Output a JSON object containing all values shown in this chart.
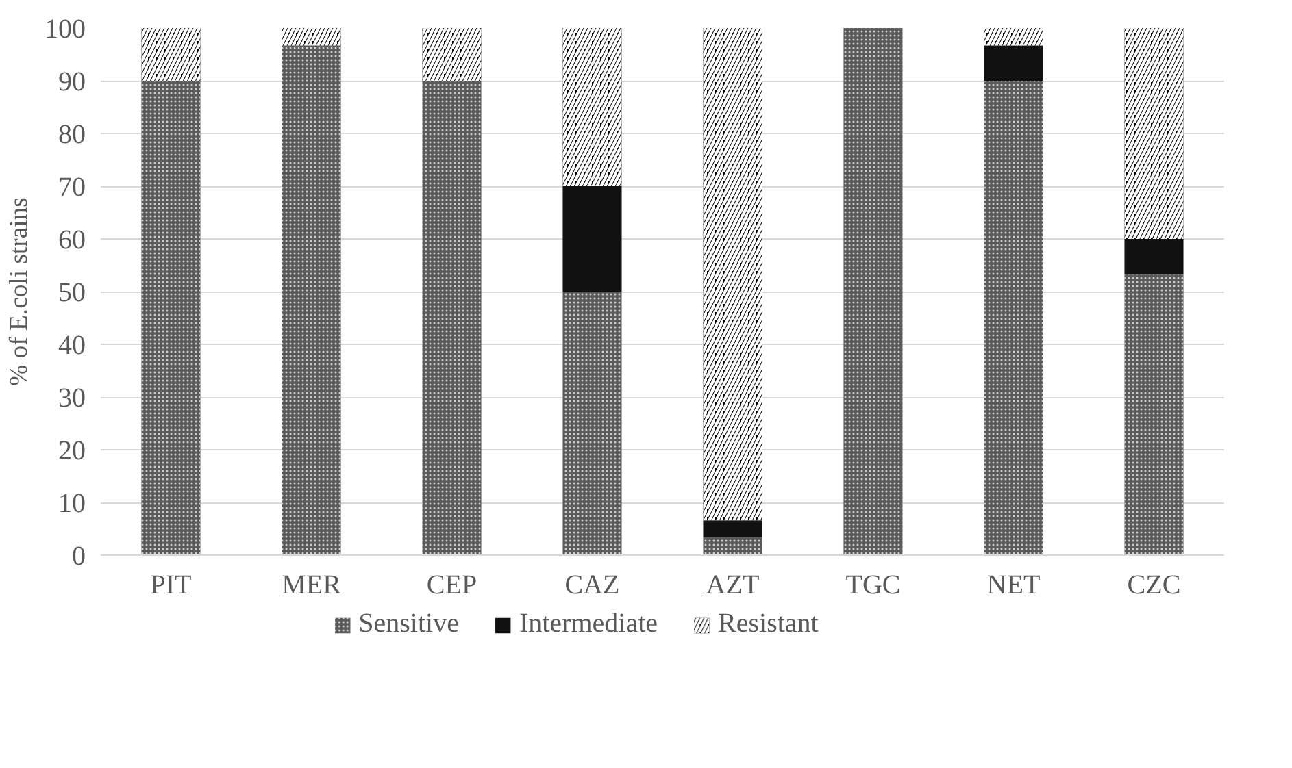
{
  "chart_data": {
    "type": "bar",
    "stacked": true,
    "ylabel": "% of E.coli strains",
    "categories": [
      "PIT",
      "MER",
      "CEP",
      "CAZ",
      "AZT",
      "TGC",
      "NET",
      "CZC"
    ],
    "series": [
      {
        "name": "Sensitive",
        "color": "#5a5a5a",
        "values": [
          90,
          96.7,
          90,
          50,
          3.3,
          100,
          90,
          53.3
        ]
      },
      {
        "name": "Intermediate",
        "color": "#111111",
        "values": [
          0,
          0,
          0,
          20,
          3.3,
          0,
          6.7,
          6.7
        ]
      },
      {
        "name": "Resistant",
        "color": "#000000",
        "values": [
          10,
          3.3,
          10,
          30,
          93.4,
          0,
          3.3,
          40
        ]
      }
    ],
    "ylim": [
      0,
      100
    ],
    "yticks": [
      0,
      10,
      20,
      30,
      40,
      50,
      60,
      70,
      80,
      90,
      100
    ],
    "grid": "y",
    "legend": "bottom"
  }
}
